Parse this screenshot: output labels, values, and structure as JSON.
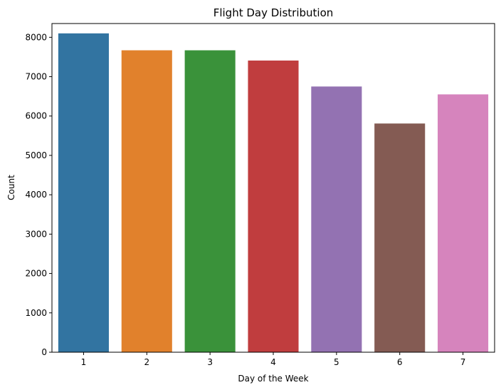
{
  "chart_data": {
    "type": "bar",
    "title": "Flight Day Distribution",
    "xlabel": "Day of the Week",
    "ylabel": "Count",
    "categories": [
      "1",
      "2",
      "3",
      "4",
      "5",
      "6",
      "7"
    ],
    "values": [
      8100,
      7670,
      7670,
      7410,
      6750,
      5810,
      6550
    ],
    "colors": [
      "#3274a1",
      "#e1812c",
      "#3a923a",
      "#c03d3e",
      "#9372b2",
      "#845b53",
      "#d684bd"
    ],
    "ylim": [
      0,
      8350
    ],
    "yticks": [
      0,
      1000,
      2000,
      3000,
      4000,
      5000,
      6000,
      7000,
      8000
    ],
    "grid": false,
    "legend": "none"
  }
}
